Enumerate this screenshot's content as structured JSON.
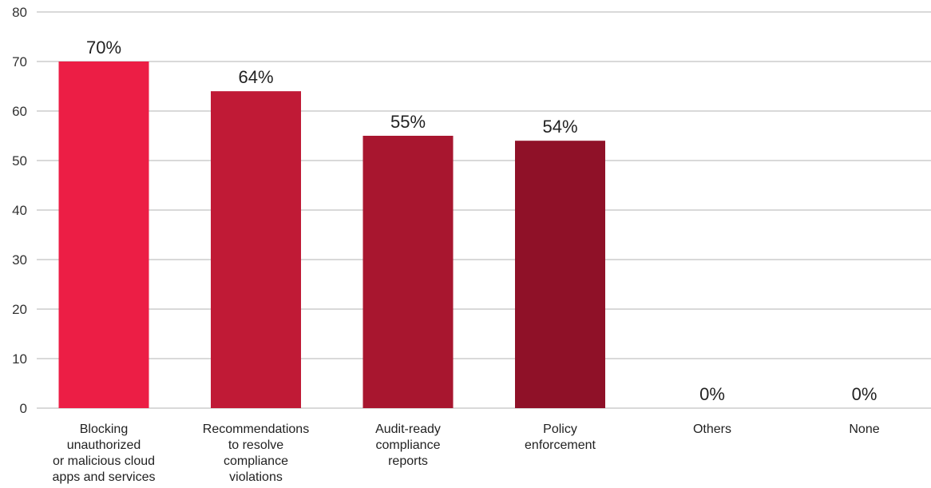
{
  "chart_data": {
    "type": "bar",
    "categories": [
      [
        "Blocking",
        "unauthorized",
        "or malicious cloud",
        "apps and services"
      ],
      [
        "Recommendations",
        "to resolve",
        "compliance",
        "violations"
      ],
      [
        "Audit-ready",
        "compliance",
        "reports"
      ],
      [
        "Policy",
        "enforcement"
      ],
      [
        "Others"
      ],
      [
        "None"
      ]
    ],
    "values": [
      70,
      64,
      55,
      54,
      0,
      0
    ],
    "data_labels": [
      "70%",
      "64%",
      "55%",
      "54%",
      "0%",
      "0%"
    ],
    "bar_colors": [
      "#ec1e45",
      "#c01a36",
      "#a8162f",
      "#8f1128",
      "#8f1128",
      "#8f1128"
    ],
    "yticks": [
      "0",
      "10",
      "20",
      "30",
      "40",
      "50",
      "60",
      "70",
      "80"
    ],
    "ylim": [
      0,
      80
    ],
    "grid": true,
    "legend": "none"
  }
}
